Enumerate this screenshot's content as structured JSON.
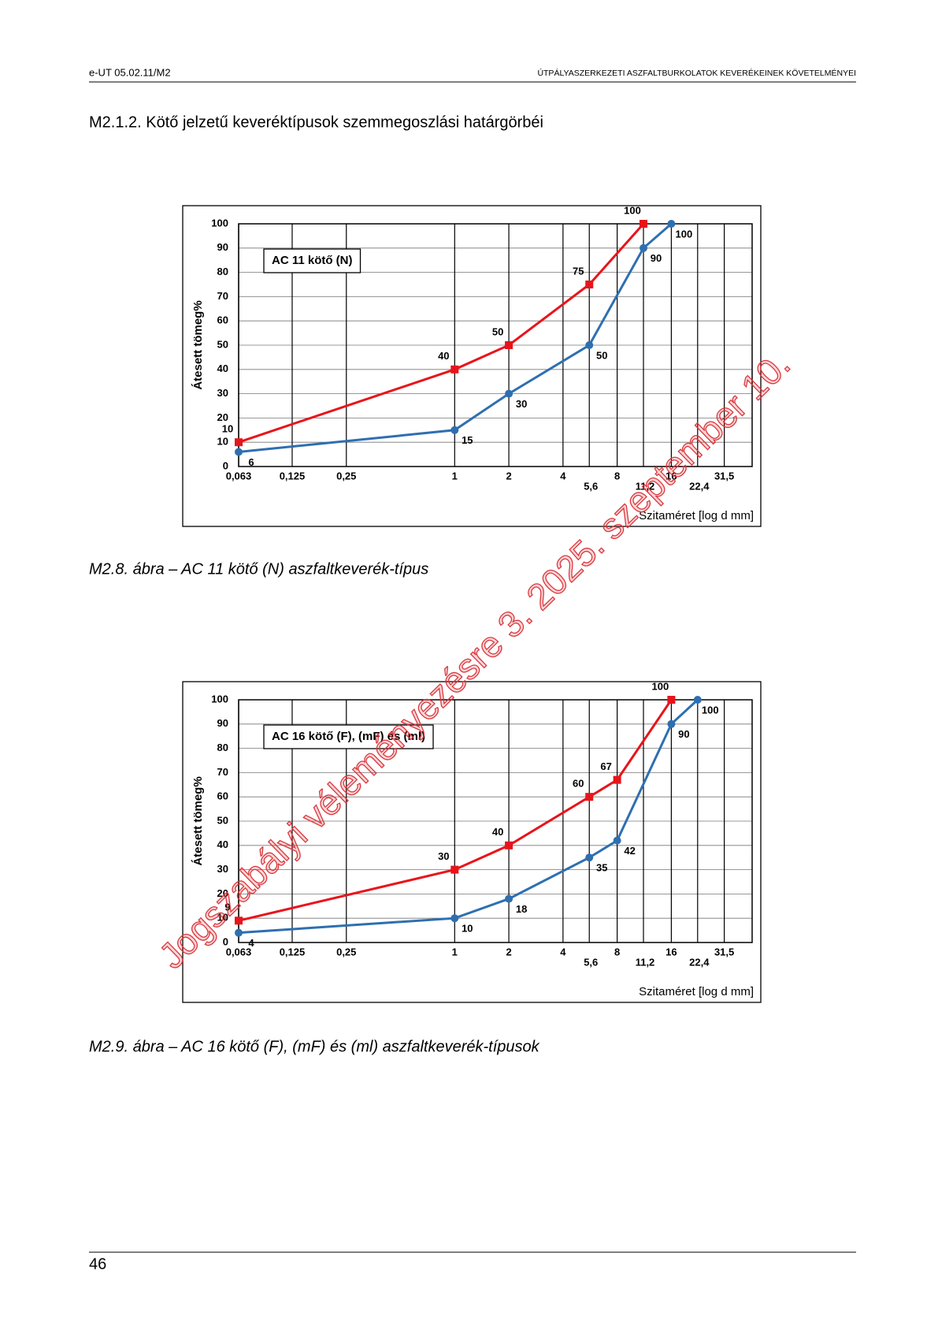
{
  "header": {
    "left": "e-UT 05.02.11/M2",
    "right": "ÚTPÁLYASZERKEZETI ASZFALTBURKOLATOK KEVERÉKEINEK KÖVETELMÉNYEI"
  },
  "section_title": "M2.1.2. Kötő jelzetű keveréktípusok szemmegoszlási határgörbéi",
  "captions": [
    "M2.8. ábra – AC 11 kötő (N) aszfaltkeverék-típus",
    "M2.9. ábra – AC 16 kötő (F), (mF) és (ml) aszfaltkeverék-típusok"
  ],
  "watermark": "Jogszabályi véleményezésre 3. 2025. szeptember 10.",
  "page_number": "46",
  "chart_data": [
    {
      "type": "line",
      "annotation": "AC 11 kötő (N)",
      "xlabel": "Szitaméret [log d mm]",
      "ylabel": "Átesett tömeg%",
      "xscale": "log",
      "xlim": [
        0.063,
        45
      ],
      "ylim": [
        0,
        100
      ],
      "grid": true,
      "xticks": [
        {
          "value": 0.063,
          "label": "0,063"
        },
        {
          "value": 0.125,
          "label": "0,125"
        },
        {
          "value": 0.25,
          "label": "0,25"
        },
        1,
        2,
        4,
        {
          "value": 5.6,
          "label": "5,6"
        },
        8,
        {
          "value": 11.2,
          "label": "11,2"
        },
        16,
        {
          "value": 22.4,
          "label": "22,4"
        },
        {
          "value": 31.5,
          "label": "31,5"
        }
      ],
      "yticks": [
        0,
        10,
        20,
        30,
        40,
        50,
        60,
        70,
        80,
        90,
        100
      ],
      "series": [
        {
          "color": "#2e6fb0",
          "marker": "circle",
          "x": [
            0.063,
            1,
            2,
            5.6,
            11.2,
            16
          ],
          "values": [
            6,
            15,
            30,
            50,
            90,
            100
          ]
        },
        {
          "color": "#e8141b",
          "marker": "square",
          "x": [
            0.063,
            1,
            2,
            5.6,
            11.2
          ],
          "values": [
            10,
            40,
            50,
            75,
            100
          ]
        }
      ]
    },
    {
      "type": "line",
      "annotation": "AC 16 kötő (F), (mF) és (ml)",
      "xlabel": "Szitaméret [log d mm]",
      "ylabel": "Átesett tömeg%",
      "xscale": "log",
      "xlim": [
        0.063,
        45
      ],
      "ylim": [
        0,
        100
      ],
      "grid": true,
      "xticks": [
        {
          "value": 0.063,
          "label": "0,063"
        },
        {
          "value": 0.125,
          "label": "0,125"
        },
        {
          "value": 0.25,
          "label": "0,25"
        },
        1,
        2,
        4,
        {
          "value": 5.6,
          "label": "5,6"
        },
        8,
        {
          "value": 11.2,
          "label": "11,2"
        },
        16,
        {
          "value": 22.4,
          "label": "22,4"
        },
        {
          "value": 31.5,
          "label": "31,5"
        }
      ],
      "yticks": [
        0,
        10,
        20,
        30,
        40,
        50,
        60,
        70,
        80,
        90,
        100
      ],
      "series": [
        {
          "color": "#2e6fb0",
          "marker": "circle",
          "x": [
            0.063,
            1,
            2,
            5.6,
            8,
            16,
            22.4
          ],
          "values": [
            4,
            10,
            18,
            35,
            42,
            90,
            100
          ]
        },
        {
          "color": "#e8141b",
          "marker": "square",
          "x": [
            0.063,
            1,
            2,
            5.6,
            8,
            16
          ],
          "values": [
            9,
            30,
            40,
            60,
            67,
            100
          ]
        }
      ]
    }
  ]
}
